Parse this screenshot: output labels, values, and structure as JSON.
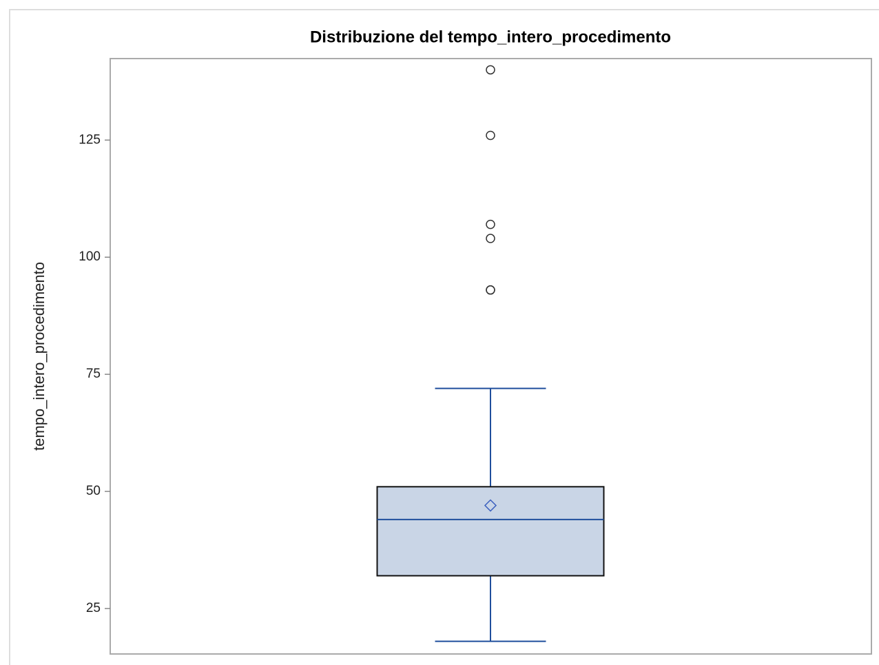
{
  "chart_data": {
    "type": "box",
    "title": "Distribuzione del tempo_intero_procedimento",
    "y_label": "tempo_intero_procedimento",
    "whisker_low": 18,
    "q1": 32,
    "median": 44,
    "q3": 51,
    "whisker_high": 72,
    "mean": 47,
    "outliers": [
      93,
      93,
      104,
      107,
      126,
      140
    ],
    "box_color": "#c9d5e6",
    "line_color": "#1f4e9c",
    "outlier_color": "#333333",
    "ylim": [
      15.3,
      142.4
    ],
    "yticks": [
      25,
      50,
      75,
      100,
      125
    ],
    "grid": false
  }
}
